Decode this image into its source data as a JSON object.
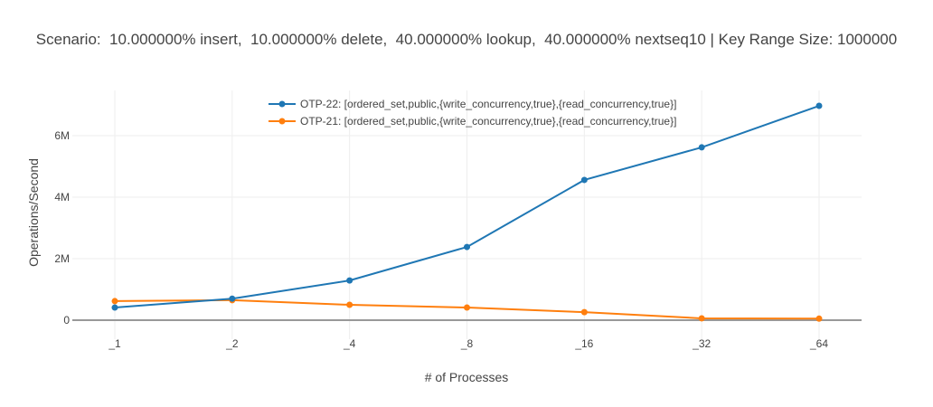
{
  "chart_data": {
    "type": "line",
    "title": "Scenario:  10.000000% insert,  10.000000% delete,  40.000000% lookup,  40.000000% nextseq10 | Key Range Size: 1000000",
    "xlabel": "# of Processes",
    "ylabel": "Operations/Second",
    "categories": [
      "_1",
      "_2",
      "_4",
      "_8",
      "_16",
      "_32",
      "_64"
    ],
    "yticks": [
      {
        "value": 0,
        "label": "0"
      },
      {
        "value": 2000000,
        "label": "2M"
      },
      {
        "value": 4000000,
        "label": "4M"
      },
      {
        "value": 6000000,
        "label": "6M"
      }
    ],
    "ylim": [
      -600000,
      7500000
    ],
    "grid": true,
    "legend_position": "top-center-inside",
    "series": [
      {
        "name": "OTP-22: [ordered_set,public,{write_concurrency,true},{read_concurrency,true}]",
        "color": "#1f77b4",
        "values": [
          410000,
          700000,
          1290000,
          2380000,
          4560000,
          5620000,
          6970000
        ]
      },
      {
        "name": "OTP-21: [ordered_set,public,{write_concurrency,true},{read_concurrency,true}]",
        "color": "#ff7f0e",
        "values": [
          620000,
          650000,
          500000,
          410000,
          260000,
          60000,
          50000
        ]
      }
    ]
  }
}
